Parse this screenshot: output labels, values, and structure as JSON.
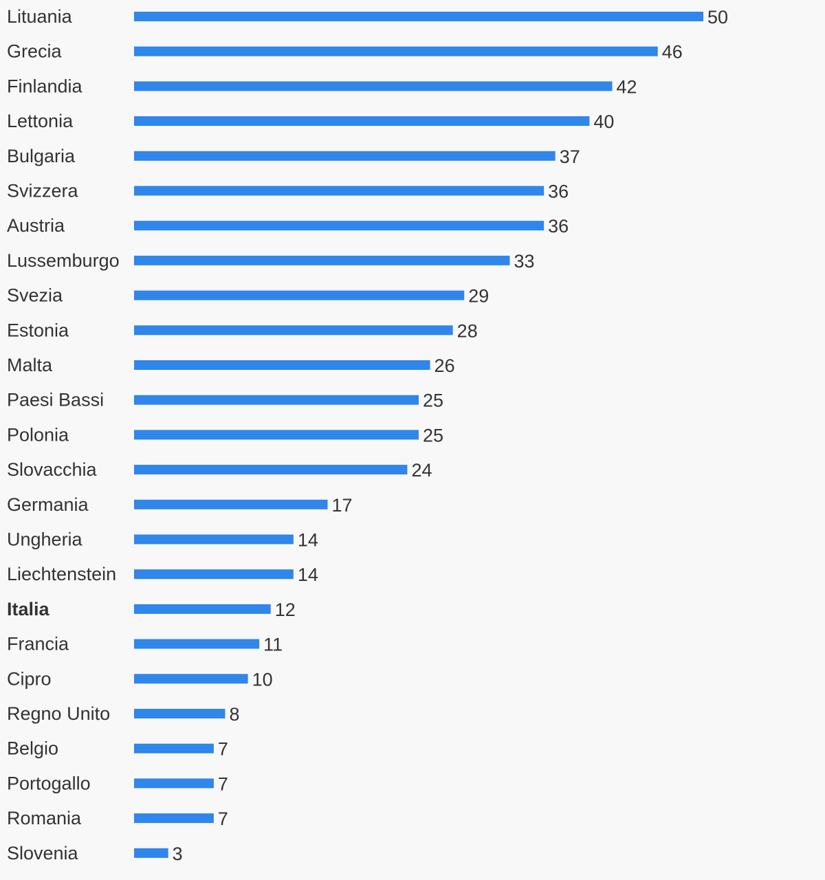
{
  "chart_data": {
    "type": "bar",
    "orientation": "horizontal",
    "categories": [
      "Lituania",
      "Grecia",
      "Finlandia",
      "Lettonia",
      "Bulgaria",
      "Svizzera",
      "Austria",
      "Lussemburgo",
      "Svezia",
      "Estonia",
      "Malta",
      "Paesi Bassi",
      "Polonia",
      "Slovacchia",
      "Germania",
      "Ungheria",
      "Liechtenstein",
      "Italia",
      "Francia",
      "Cipro",
      "Regno Unito",
      "Belgio",
      "Portogallo",
      "Romania",
      "Slovenia"
    ],
    "values": [
      50,
      46,
      42,
      40,
      37,
      36,
      36,
      33,
      29,
      28,
      26,
      25,
      25,
      24,
      17,
      14,
      14,
      12,
      11,
      10,
      8,
      7,
      7,
      7,
      3
    ],
    "highlighted_category": "Italia",
    "xlim": [
      0,
      50
    ],
    "data_labels": true,
    "grid": false,
    "title": "",
    "xlabel": "",
    "ylabel": "",
    "bar_color": "#2f86eb",
    "text_color": "#333333",
    "background_color": "#f8f8f8"
  }
}
